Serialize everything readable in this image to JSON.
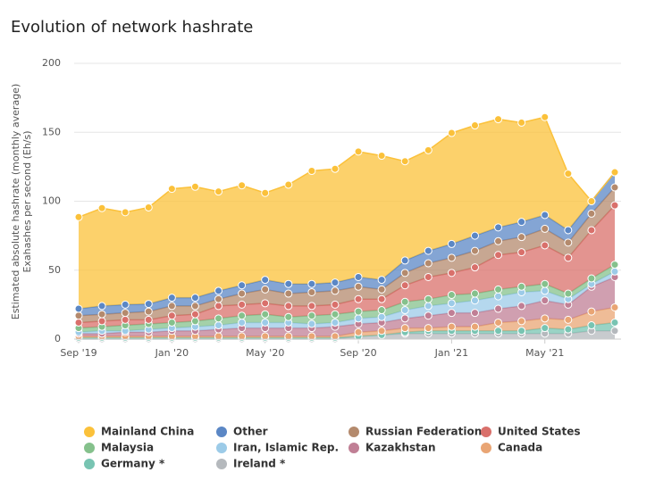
{
  "chart_data": {
    "type": "stacked-area",
    "title": "Evolution of network hashrate",
    "y_label": [
      "Estimated absolute hashrate (monthly average)",
      "Exahashes per second (Eh/s)"
    ],
    "categories": [
      "Sep '19",
      null,
      null,
      null,
      "Jan '20",
      null,
      null,
      null,
      "May '20",
      null,
      null,
      null,
      "Sep '20",
      null,
      null,
      null,
      "Jan '21",
      null,
      null,
      null,
      "May '21",
      null,
      null,
      null
    ],
    "ylim": [
      0,
      200
    ],
    "yticks": [
      0,
      50,
      100,
      150,
      200
    ],
    "grid": true,
    "series": [
      {
        "name": "Mainland China",
        "color": "#fbc13a",
        "values": [
          66.5,
          71,
          67,
          70,
          79,
          80.5,
          72,
          72.5,
          63,
          72,
          82,
          82.5,
          91,
          90,
          72,
          73,
          80.5,
          80,
          78.5,
          72,
          71,
          41,
          0,
          0
        ]
      },
      {
        "name": "Other",
        "color": "#5b87c5",
        "values": [
          5,
          6,
          6,
          5.5,
          6,
          6,
          6,
          6,
          7,
          7,
          6,
          6,
          7,
          7,
          9,
          9,
          10,
          11,
          10,
          11,
          10,
          9,
          9,
          11
        ]
      },
      {
        "name": "Russian Federation",
        "color": "#b48a6d",
        "values": [
          5,
          5,
          5,
          6,
          7,
          6,
          5,
          8,
          10,
          9,
          10,
          10,
          9,
          7,
          9,
          10,
          11,
          12,
          10,
          11,
          12,
          11,
          12,
          13
        ]
      },
      {
        "name": "United States",
        "color": "#d9706b",
        "values": [
          4,
          4,
          4,
          3,
          5,
          5,
          9,
          8,
          8,
          8,
          7,
          7,
          9,
          8,
          12,
          16,
          16,
          19,
          25,
          25,
          28,
          26,
          35,
          43
        ]
      },
      {
        "name": "Malaysia",
        "color": "#85c18c",
        "values": [
          3,
          3,
          4,
          4,
          4,
          4,
          5,
          5,
          6,
          4,
          6,
          6,
          5,
          5,
          6,
          5,
          6,
          5,
          5,
          4,
          5,
          4,
          4,
          5
        ]
      },
      {
        "name": "Iran, Islamic Rep.",
        "color": "#9ccbe8",
        "values": [
          1,
          2,
          1,
          2,
          2,
          3,
          3,
          4,
          4,
          4,
          3,
          3,
          4,
          4,
          6,
          7,
          7,
          9,
          9,
          10,
          7,
          4,
          2,
          4
        ]
      },
      {
        "name": "Kazakhstan",
        "color": "#c07f95",
        "values": [
          2,
          2,
          3,
          3,
          4,
          4,
          5,
          6,
          6,
          6,
          6,
          7,
          6,
          6,
          7,
          9,
          10,
          10,
          10,
          11,
          13,
          11,
          18,
          22
        ]
      },
      {
        "name": "Canada",
        "color": "#e9a574",
        "values": [
          1,
          1,
          1,
          1,
          1,
          1,
          1,
          1,
          1,
          1,
          1,
          1,
          3,
          3,
          3,
          2,
          3,
          3,
          6,
          7,
          7,
          7,
          10,
          11
        ]
      },
      {
        "name": "Germany *",
        "color": "#78c4b2",
        "values": [
          1,
          1,
          1,
          1,
          1,
          1,
          1,
          1,
          1,
          1,
          1,
          1,
          0,
          0,
          1,
          2,
          2,
          2,
          2,
          2,
          4,
          3,
          4,
          6
        ]
      },
      {
        "name": "Ireland *",
        "color": "#b5b9bd",
        "values": [
          0,
          0,
          0,
          0,
          0,
          0,
          0,
          0,
          0,
          0,
          0,
          0,
          2,
          3,
          4,
          4,
          4,
          4,
          4,
          4,
          4,
          4,
          6,
          6
        ]
      }
    ]
  }
}
